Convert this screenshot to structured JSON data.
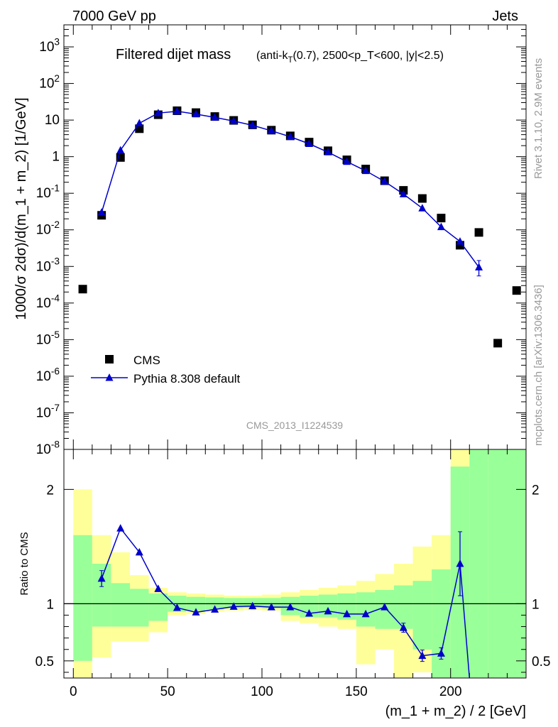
{
  "header": {
    "left": "7000 GeV pp",
    "right": "Jets"
  },
  "side_labels": {
    "rivet": "Rivet 3.1.10,  2.9M events",
    "mcplots": "mcplots.cern.ch [arXiv:1306.3436]"
  },
  "watermark": "CMS_2013_I1224539",
  "colors": {
    "data": "#000000",
    "mc": "#0000cc",
    "band_inner": "#99ff99",
    "band_outer": "#ffff99"
  },
  "chart_data": [
    {
      "type": "scatter",
      "title_main": "Filtered dijet mass",
      "title_sub": "(anti-k_T(0.7), 2500<p_T<600, |y|<2.5)",
      "ylabel": "1000/σ 2dσ)/d(m_1 + m_2) [1/GeV]",
      "yscale": "log",
      "ylim": [
        1e-08,
        4000
      ],
      "xlim": [
        -5,
        240
      ],
      "y_ticks": [
        "10^{-8}",
        "10^{-7}",
        "10^{-6}",
        "10^{-5}",
        "10^{-4}",
        "10^{-3}",
        "10^{-2}",
        "10^{-1}",
        "1",
        "10",
        "10^{2}",
        "10^{3}"
      ],
      "legend_position": "bottom-left",
      "series": [
        {
          "name": "CMS",
          "marker": "square",
          "x": [
            5,
            15,
            25,
            35,
            45,
            55,
            65,
            75,
            85,
            95,
            105,
            115,
            125,
            135,
            145,
            155,
            165,
            175,
            185,
            195,
            205,
            215,
            225,
            235
          ],
          "y": [
            0.00024,
            0.025,
            0.95,
            5.8,
            14,
            18,
            16,
            12.5,
            9.8,
            7.4,
            5.3,
            3.7,
            2.5,
            1.45,
            0.82,
            0.46,
            0.22,
            0.12,
            0.072,
            0.021,
            0.0038,
            0.0085,
            8e-06,
            0.00022
          ]
        },
        {
          "name": "Pythia 8.308 default",
          "marker": "triangle",
          "x": [
            15,
            25,
            35,
            45,
            55,
            65,
            75,
            85,
            95,
            105,
            115,
            125,
            135,
            145,
            155,
            165,
            175,
            185,
            195,
            205,
            215
          ],
          "y": [
            0.03,
            1.5,
            8.2,
            15.5,
            17.4,
            14.5,
            11.8,
            9.4,
            7.2,
            5.1,
            3.5,
            2.25,
            1.33,
            0.73,
            0.41,
            0.21,
            0.095,
            0.039,
            0.012,
            0.0048,
            0.00095
          ],
          "err_lo": [
            0,
            0,
            0,
            0,
            0,
            0,
            0,
            0,
            0,
            0,
            0,
            0,
            0,
            0,
            0,
            0,
            0,
            0,
            0,
            0,
            0.0004
          ],
          "err_hi": [
            0,
            0,
            0,
            0,
            0,
            0,
            0,
            0,
            0,
            0,
            0,
            0,
            0,
            0,
            0,
            0,
            0,
            0,
            0,
            0,
            0.0005
          ]
        }
      ]
    },
    {
      "type": "line",
      "ylabel": "Ratio to CMS",
      "xlabel": "(m_1 + m_2) / 2 [GeV]",
      "ylim": [
        0.35,
        2.35
      ],
      "xlim": [
        -5,
        240
      ],
      "x_ticks": [
        0,
        50,
        100,
        150,
        200
      ],
      "y_ticks": [
        0.5,
        1,
        2
      ],
      "bands": {
        "edges": [
          0,
          10,
          20,
          30,
          40,
          50,
          60,
          70,
          80,
          90,
          100,
          110,
          120,
          130,
          140,
          150,
          160,
          170,
          180,
          190,
          200,
          210,
          220,
          240
        ],
        "inner_lo": [
          0.5,
          0.8,
          0.8,
          0.8,
          0.85,
          0.93,
          0.94,
          0.95,
          0.96,
          0.965,
          0.96,
          0.9,
          0.88,
          0.88,
          0.86,
          0.8,
          0.78,
          0.78,
          0.6,
          0.35,
          0.35,
          0.35,
          0.35
        ],
        "inner_hi": [
          1.6,
          1.35,
          1.18,
          1.13,
          1.09,
          1.07,
          1.06,
          1.055,
          1.05,
          1.05,
          1.05,
          1.06,
          1.07,
          1.08,
          1.09,
          1.1,
          1.12,
          1.16,
          1.2,
          1.3,
          2.2,
          2.4,
          2.4
        ],
        "outer_lo": [
          0.35,
          0.53,
          0.67,
          0.67,
          0.75,
          0.9,
          0.91,
          0.93,
          0.94,
          0.945,
          0.94,
          0.85,
          0.83,
          0.8,
          0.78,
          0.47,
          0.6,
          0.35,
          0.4,
          0.35,
          0.35,
          0.35,
          0.35
        ],
        "outer_hi": [
          2.0,
          1.6,
          1.45,
          1.25,
          1.14,
          1.1,
          1.09,
          1.08,
          1.07,
          1.07,
          1.08,
          1.1,
          1.12,
          1.14,
          1.16,
          1.2,
          1.26,
          1.35,
          1.5,
          1.6,
          2.35,
          2.1,
          2.4
        ]
      },
      "series": [
        {
          "name": "Pythia 8.308 default",
          "x": [
            15,
            25,
            35,
            45,
            55,
            65,
            75,
            85,
            95,
            105,
            115,
            125,
            135,
            145,
            155,
            165,
            175,
            185,
            195,
            205,
            210
          ],
          "y": [
            1.22,
            1.66,
            1.45,
            1.13,
            0.965,
            0.925,
            0.95,
            0.975,
            0.98,
            0.97,
            0.97,
            0.915,
            0.935,
            0.91,
            0.91,
            0.97,
            0.79,
            0.545,
            0.565,
            1.35,
            0.35
          ],
          "err_lo": [
            0.07,
            0,
            0,
            0,
            0,
            0,
            0,
            0,
            0,
            0,
            0,
            0,
            0,
            0,
            0,
            0,
            0.04,
            0.05,
            0.05,
            0.28,
            0
          ],
          "err_hi": [
            0.07,
            0,
            0,
            0,
            0,
            0,
            0,
            0,
            0,
            0,
            0,
            0,
            0,
            0,
            0,
            0,
            0.04,
            0.05,
            0.05,
            0.28,
            0
          ]
        }
      ]
    }
  ]
}
